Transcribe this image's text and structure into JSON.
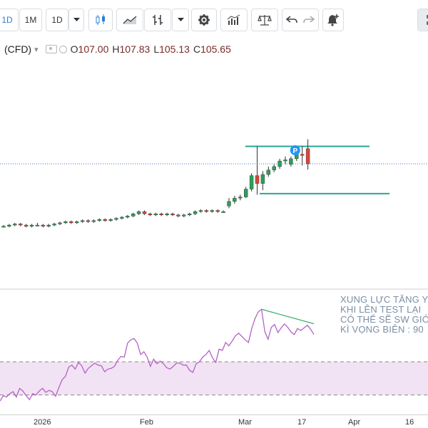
{
  "toolbar": {
    "intervals": [
      "1D",
      "1M",
      "1D"
    ],
    "icons": [
      "dropdown-caret-icon",
      "candlestick-chart-icon",
      "area-chart-icon",
      "indicator-icon",
      "dropdown-caret-icon",
      "settings-gear-icon",
      "bar-volume-icon",
      "balance-scale-icon",
      "undo-icon",
      "redo-icon",
      "add-alert-icon"
    ]
  },
  "symbol": {
    "name": "(CFD)",
    "caret": "▾",
    "open_label": "O",
    "open": "107.00",
    "high_label": "H",
    "high": "107.83",
    "low_label": "L",
    "low": "105.13",
    "close_label": "C",
    "close": "105.65"
  },
  "badge": {
    "label": "P",
    "color": "#2196f3"
  },
  "annotation": {
    "lines": [
      "XUNG LỰC TĂNG Y",
      "KHI LÊN TEST LẠI",
      "CÓ THỂ SẼ SW GIÓ",
      "KÌ VỌNG BIÊN : 90"
    ]
  },
  "x_axis": {
    "labels": [
      "2026",
      "Feb",
      "Mar",
      "17",
      "Apr",
      "16"
    ]
  },
  "colors": {
    "up": "#2e9e5b",
    "down": "#d9453c",
    "oscillator": "#b463c6",
    "oscillator_band": "#f1e3f3",
    "levels": "#26a69a",
    "price_line": "#3b6fd6",
    "trend_line": "#3fae6a"
  },
  "chart_data": [
    {
      "type": "candlestick",
      "description_scale": "price, unlabeled axis; last close 105.65",
      "candles": [
        [
          100.1,
          100.2,
          100.0,
          100.1
        ],
        [
          100.1,
          100.3,
          100.0,
          100.2
        ],
        [
          100.2,
          100.4,
          100.1,
          100.3
        ],
        [
          100.3,
          100.4,
          100.1,
          100.2
        ],
        [
          100.2,
          100.3,
          100.0,
          100.1
        ],
        [
          100.1,
          100.3,
          100.0,
          100.2
        ],
        [
          100.2,
          100.4,
          100.1,
          100.2
        ],
        [
          100.2,
          100.3,
          100.0,
          100.1
        ],
        [
          100.1,
          100.3,
          100.0,
          100.2
        ],
        [
          100.2,
          100.4,
          100.1,
          100.3
        ],
        [
          100.3,
          100.5,
          100.2,
          100.4
        ],
        [
          100.4,
          100.6,
          100.3,
          100.5
        ],
        [
          100.5,
          100.6,
          100.3,
          100.4
        ],
        [
          100.4,
          100.6,
          100.3,
          100.5
        ],
        [
          100.5,
          100.7,
          100.4,
          100.6
        ],
        [
          100.6,
          100.7,
          100.4,
          100.5
        ],
        [
          100.5,
          100.7,
          100.4,
          100.6
        ],
        [
          100.6,
          100.8,
          100.5,
          100.7
        ],
        [
          100.7,
          100.8,
          100.5,
          100.6
        ],
        [
          100.6,
          100.8,
          100.5,
          100.7
        ],
        [
          100.7,
          100.9,
          100.6,
          100.8
        ],
        [
          100.8,
          101.0,
          100.7,
          100.9
        ],
        [
          100.9,
          101.1,
          100.8,
          101.0
        ],
        [
          101.0,
          101.3,
          100.9,
          101.2
        ],
        [
          101.2,
          101.5,
          101.1,
          101.4
        ],
        [
          101.4,
          101.5,
          101.1,
          101.2
        ],
        [
          101.2,
          101.3,
          101.0,
          101.1
        ],
        [
          101.1,
          101.3,
          101.0,
          101.2
        ],
        [
          101.2,
          101.3,
          101.0,
          101.1
        ],
        [
          101.1,
          101.3,
          101.0,
          101.2
        ],
        [
          101.2,
          101.3,
          101.0,
          101.1
        ],
        [
          101.1,
          101.2,
          100.9,
          101.0
        ],
        [
          101.0,
          101.2,
          100.9,
          101.1
        ],
        [
          101.1,
          101.3,
          101.0,
          101.2
        ],
        [
          101.2,
          101.5,
          101.1,
          101.4
        ],
        [
          101.4,
          101.6,
          101.3,
          101.5
        ],
        [
          101.5,
          101.6,
          101.3,
          101.4
        ],
        [
          101.4,
          101.6,
          101.3,
          101.5
        ],
        [
          101.5,
          101.6,
          101.3,
          101.4
        ],
        [
          101.4,
          101.5,
          101.3,
          101.4
        ],
        [
          101.9,
          102.6,
          101.7,
          102.3
        ],
        [
          102.3,
          102.8,
          102.1,
          102.6
        ],
        [
          102.6,
          102.9,
          102.4,
          102.7
        ],
        [
          102.7,
          103.6,
          102.6,
          103.4
        ],
        [
          103.4,
          104.8,
          103.2,
          104.6
        ],
        [
          104.6,
          107.2,
          102.9,
          103.9
        ],
        [
          103.9,
          105.0,
          103.3,
          104.7
        ],
        [
          104.7,
          105.4,
          104.5,
          105.1
        ],
        [
          105.1,
          105.6,
          104.9,
          105.4
        ],
        [
          105.4,
          106.1,
          105.2,
          105.9
        ],
        [
          105.9,
          106.3,
          105.6,
          106.0
        ],
        [
          105.6,
          106.3,
          105.4,
          106.1
        ],
        [
          106.1,
          106.8,
          105.9,
          106.5
        ],
        [
          106.5,
          107.2,
          105.5,
          106.4
        ],
        [
          107.0,
          107.83,
          105.13,
          105.65
        ]
      ],
      "levels": [
        107.2,
        103.0
      ],
      "last_price": 105.65
    },
    {
      "type": "line",
      "name": "",
      "values": [
        16,
        24,
        22,
        27,
        30,
        22,
        35,
        31,
        24,
        18,
        27,
        25,
        31,
        35,
        29,
        32,
        30,
        23,
        36,
        48,
        53,
        67,
        70,
        64,
        74,
        69,
        58,
        65,
        69,
        73,
        70,
        69,
        60,
        64,
        65,
        68,
        77,
        83,
        82,
        103,
        108,
        110,
        103,
        86,
        90,
        82,
        68,
        79,
        72,
        76,
        72,
        66,
        64,
        68,
        73,
        73,
        70,
        70,
        62,
        59,
        72,
        75,
        82,
        86,
        92,
        81,
        74,
        94,
        92,
        104,
        99,
        106,
        114,
        118,
        113,
        108,
        104,
        125,
        140,
        150,
        154,
        120,
        109,
        127,
        131,
        119,
        126,
        132,
        127,
        120,
        116,
        125,
        122,
        126,
        130,
        124,
        116
      ],
      "band": [
        25,
        75
      ]
    }
  ]
}
